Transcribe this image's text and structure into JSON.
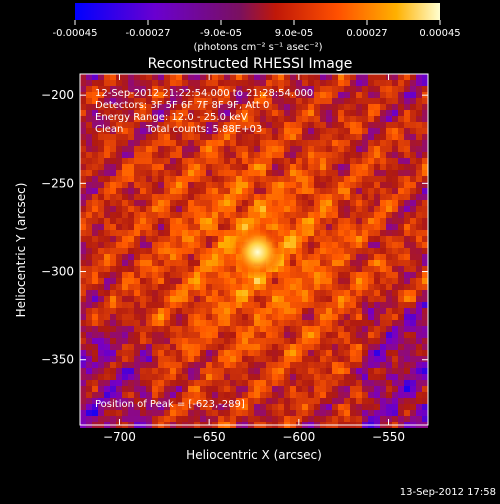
{
  "chart_data": {
    "type": "heatmap",
    "title": "Reconstructed RHESSI Image",
    "xlabel": "Heliocentric X (arcsec)",
    "ylabel": "Heliocentric Y (arcsec)",
    "xlim": [
      -722,
      -528
    ],
    "ylim": [
      -387,
      -188
    ],
    "x_ticks": [
      -700,
      -650,
      -600,
      -550
    ],
    "y_ticks": [
      -200,
      -250,
      -300,
      -350
    ],
    "colorbar": {
      "range": [
        -0.00045,
        0.00045
      ],
      "tick_values": [
        -0.00045,
        -0.00027,
        -9e-05,
        9e-05,
        0.00027,
        0.00045
      ],
      "tick_labels": [
        "-0.00045",
        "-0.00027",
        "-9.0e-05",
        "9.0e-05",
        "0.00027",
        "0.00045"
      ],
      "units": "(photons cm⁻² s⁻¹ asec⁻²)",
      "colormap": [
        "#0000ff",
        "#7a00c0",
        "#b01a10",
        "#ff5a00",
        "#ffb000",
        "#ffffc0"
      ]
    },
    "annotations": [
      "12-Sep-2012 21:22:54.000 to 21:28:54.000",
      "Detectors: 3F 5F 6F 7F 8F 9F, Att 0",
      "Energy Range: 12.0 - 25.0 keV",
      "Clean",
      "Total counts: 5.88E+03",
      "Position of Peak = [-623,-289]"
    ],
    "peak": {
      "x": -623,
      "y": -289
    },
    "timestamp": "13-Sep-2012 17:58"
  }
}
